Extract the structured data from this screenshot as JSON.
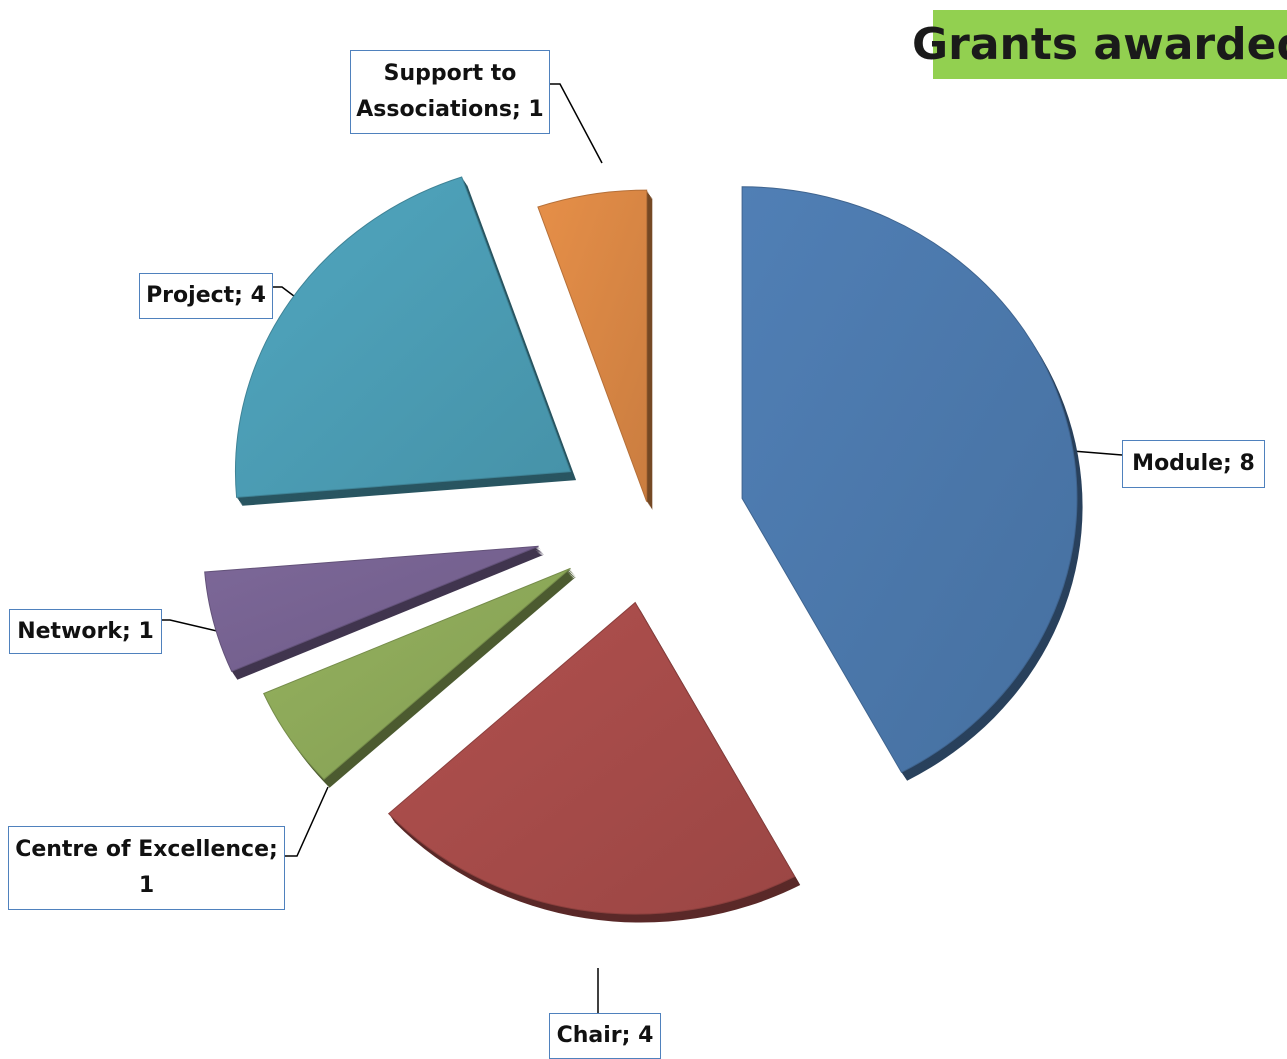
{
  "chart_data": {
    "type": "pie",
    "title": "Grants awarded",
    "slices": [
      {
        "name": "Module",
        "value": 8,
        "label": "Module; 8",
        "color": "#4a76a8"
      },
      {
        "name": "Chair",
        "value": 4,
        "label": "Chair; 4",
        "color": "#a34a48"
      },
      {
        "name": "Centre of Excellence",
        "value": 1,
        "label_line1": "Centre of Excellence;",
        "label_line2": "1",
        "color": "#8aa557"
      },
      {
        "name": "Network",
        "value": 1,
        "label": "Network; 1",
        "color": "#74608e"
      },
      {
        "name": "Project",
        "value": 4,
        "label": "Project; 4",
        "color": "#4a9ab1"
      },
      {
        "name": "Support to Associations",
        "value": 1,
        "label_line1": "Support to",
        "label_line2": "Associations; 1",
        "color": "#d58443"
      }
    ],
    "exploded": true,
    "three_d": true,
    "legend": "none",
    "title_background": "#92d050"
  }
}
